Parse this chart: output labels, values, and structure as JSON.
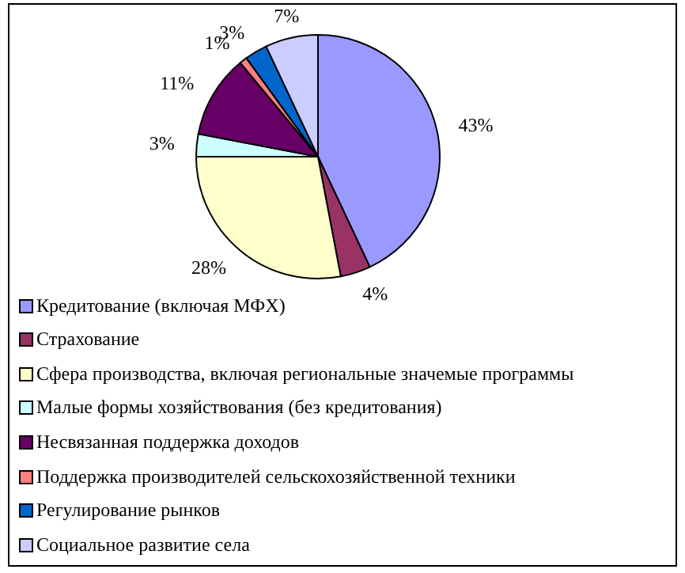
{
  "chart_data": {
    "type": "pie",
    "categories": [
      "Кредитование (включая МФХ)",
      "Страхование",
      "Сфера производства, включая региональные значемые программы",
      "Малые формы хозяйствования (без кредитования)",
      "Несвязанная поддержка доходов",
      "Поддержка производителей сельскохозяйственной техники",
      "Регулирование рынков",
      "Социальное развитие села"
    ],
    "values": [
      43,
      4,
      28,
      3,
      11,
      1,
      3,
      7
    ],
    "colors": [
      "#9999ff",
      "#993366",
      "#ffffcc",
      "#ccffff",
      "#660066",
      "#ff8080",
      "#0066cc",
      "#ccccff"
    ],
    "value_labels": [
      "43%",
      "4%",
      "28%",
      "3%",
      "11%",
      "1%",
      "3%",
      "7%"
    ],
    "legend": "bottom"
  }
}
